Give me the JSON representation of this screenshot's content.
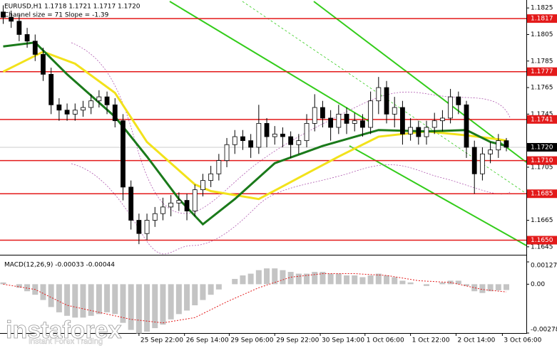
{
  "chart_data": [
    {
      "type": "candlestick",
      "title": "EURUSD,H1  1.1718 1.1721 1.1717 1.1720",
      "subtitle": "Channel size = 71 Slope = -1.39",
      "open": [
        1.1822,
        1.1818,
        1.1815,
        1.1805,
        1.18,
        1.179,
        1.1775,
        1.1752,
        1.1748,
        1.1745,
        1.1748,
        1.175,
        1.1755,
        1.1758,
        1.1752,
        1.174,
        1.169,
        1.1665,
        1.1655,
        1.1665,
        1.167,
        1.1675,
        1.1678,
        1.168,
        1.1672,
        1.1688,
        1.1695,
        1.17,
        1.171,
        1.1722,
        1.1728,
        1.1725,
        1.172,
        1.1738,
        1.1728,
        1.173,
        1.1728,
        1.1722,
        1.1725,
        1.1738,
        1.175,
        1.1742,
        1.1735,
        1.1745,
        1.1738,
        1.174,
        1.1735,
        1.1755,
        1.1765,
        1.1745,
        1.175,
        1.173,
        1.1735,
        1.1728,
        1.1735,
        1.174,
        1.1742,
        1.1758,
        1.1752,
        1.172,
        1.17,
        1.1715,
        1.1718,
        1.1725
      ],
      "high": [
        1.1827,
        1.1823,
        1.182,
        1.181,
        1.1805,
        1.1795,
        1.178,
        1.1757,
        1.1753,
        1.1753,
        1.1755,
        1.176,
        1.1763,
        1.1762,
        1.1757,
        1.1745,
        1.1695,
        1.167,
        1.167,
        1.1675,
        1.1682,
        1.1684,
        1.1686,
        1.1685,
        1.1692,
        1.17,
        1.1706,
        1.1715,
        1.1727,
        1.1733,
        1.1733,
        1.173,
        1.1752,
        1.1742,
        1.1736,
        1.1735,
        1.1732,
        1.173,
        1.1745,
        1.176,
        1.1755,
        1.1748,
        1.1752,
        1.175,
        1.1746,
        1.1745,
        1.1762,
        1.1773,
        1.177,
        1.1758,
        1.1755,
        1.1742,
        1.174,
        1.174,
        1.1746,
        1.1748,
        1.1764,
        1.1762,
        1.1755,
        1.1725,
        1.172,
        1.1724,
        1.173,
        1.1727
      ],
      "low": [
        1.1813,
        1.181,
        1.18,
        1.1795,
        1.1785,
        1.177,
        1.1745,
        1.174,
        1.174,
        1.174,
        1.1743,
        1.1745,
        1.175,
        1.1745,
        1.1735,
        1.168,
        1.1658,
        1.1647,
        1.165,
        1.166,
        1.1665,
        1.1668,
        1.1672,
        1.1665,
        1.1668,
        1.1683,
        1.169,
        1.1695,
        1.1705,
        1.1715,
        1.1718,
        1.1712,
        1.1715,
        1.172,
        1.1722,
        1.172,
        1.1712,
        1.1715,
        1.172,
        1.1732,
        1.1735,
        1.1725,
        1.173,
        1.173,
        1.1732,
        1.1728,
        1.173,
        1.1745,
        1.1738,
        1.1735,
        1.1722,
        1.1725,
        1.1722,
        1.1722,
        1.173,
        1.1732,
        1.1738,
        1.1745,
        1.1712,
        1.1685,
        1.1695,
        1.1708,
        1.1712,
        1.1717
      ],
      "close": [
        1.1818,
        1.1815,
        1.1805,
        1.18,
        1.179,
        1.1775,
        1.1752,
        1.1748,
        1.1745,
        1.1748,
        1.175,
        1.1755,
        1.1758,
        1.1752,
        1.174,
        1.169,
        1.1665,
        1.1655,
        1.1665,
        1.167,
        1.1675,
        1.1678,
        1.168,
        1.1672,
        1.1688,
        1.1695,
        1.17,
        1.171,
        1.1722,
        1.1728,
        1.1725,
        1.172,
        1.1738,
        1.1728,
        1.173,
        1.1728,
        1.1722,
        1.1725,
        1.1738,
        1.175,
        1.1742,
        1.1735,
        1.1745,
        1.1738,
        1.174,
        1.1735,
        1.1755,
        1.1765,
        1.1745,
        1.175,
        1.173,
        1.1735,
        1.1728,
        1.1735,
        1.174,
        1.1742,
        1.1758,
        1.1752,
        1.172,
        1.17,
        1.1715,
        1.1718,
        1.1725,
        1.172
      ],
      "ma_fast": {
        "color": "#1a7a1a",
        "x": [
          0,
          4,
          8,
          14,
          18,
          22,
          25,
          29,
          34,
          40,
          47,
          53,
          58,
          61,
          63
        ],
        "values": [
          1.1796,
          1.1799,
          1.1775,
          1.1743,
          1.1713,
          1.1681,
          1.1662,
          1.1681,
          1.1708,
          1.1721,
          1.1733,
          1.1732,
          1.1733,
          1.1724,
          1.1721
        ]
      },
      "ma_slow": {
        "color": "#f2e21b",
        "x": [
          0,
          5,
          9,
          14,
          18,
          24,
          26,
          32,
          37,
          42,
          47,
          53,
          58,
          62,
          63
        ],
        "values": [
          1.1777,
          1.1792,
          1.1783,
          1.1761,
          1.1724,
          1.1692,
          1.1687,
          1.1681,
          1.1697,
          1.1713,
          1.1728,
          1.1732,
          1.1729,
          1.1726,
          1.1725
        ]
      },
      "levels": [
        1.1817,
        1.1777,
        1.1741,
        {
          "value": 1.171,
          "label": "1.1710"
        },
        1.1685,
        {
          "value": 1.165,
          "label": "1.1650"
        }
      ],
      "level_color": "#e31a1a",
      "current_price": {
        "value": 1.172,
        "label": "1.1720"
      },
      "ylim": [
        1.1639,
        1.1831
      ],
      "yticks": [
        1.1825,
        1.1805,
        1.1785,
        1.1765,
        1.1745,
        1.1705,
        1.1665,
        1.1645
      ],
      "xlim": [
        -0.4,
        65.5
      ],
      "xticks": [
        {
          "value": 17,
          "label": "25 Sep 22:00"
        },
        {
          "value": 22.7,
          "label": "26 Sep 14:00"
        },
        {
          "value": 28.3,
          "label": "29 Sep 06:00"
        },
        {
          "value": 34,
          "label": "29 Sep 22:00"
        },
        {
          "value": 39.7,
          "label": "30 Sep 14:00"
        },
        {
          "value": 45.3,
          "label": "1 Oct 06:00"
        },
        {
          "value": 51,
          "label": "1 Oct 22:00"
        },
        {
          "value": 56.7,
          "label": "2 Oct 14:00"
        },
        {
          "value": 62.5,
          "label": "3 Oct 06:00"
        }
      ],
      "watermark": "instaforex",
      "watermark_tagline": "Instant Forex Trading"
    },
    {
      "type": "bar",
      "title": "MACD(12,26,9) -0.00033 -0.00044",
      "color": "#c4c4c4",
      "values": [
        0.0001,
        0,
        -0.0002,
        -0.0004,
        -0.0006,
        -0.0009,
        -0.0013,
        -0.0016,
        -0.0018,
        -0.0019,
        -0.0019,
        -0.0018,
        -0.0017,
        -0.0016,
        -0.0017,
        -0.0022,
        -0.0026,
        -0.0028,
        -0.0027,
        -0.0025,
        -0.0023,
        -0.002,
        -0.0017,
        -0.0015,
        -0.0012,
        -0.0009,
        -0.0006,
        -0.0003,
        0,
        0.0003,
        0.0005,
        0.0006,
        0.0008,
        0.0009,
        0.0009,
        0.0008,
        0.0007,
        0.0006,
        0.0006,
        0.0007,
        0.0007,
        0.0006,
        0.0006,
        0.0005,
        0.0005,
        0.0004,
        0.0005,
        0.0006,
        0.0005,
        0.0004,
        0.0002,
        0.0001,
        0,
        -0.0001,
        0,
        0.0001,
        0.0002,
        0.0002,
        -0.0001,
        -0.0004,
        -0.0005,
        -0.0004,
        -0.00035,
        -0.00033
      ],
      "signal": {
        "color": "#e31a1a",
        "x": [
          0,
          4,
          8,
          12,
          16,
          20,
          24,
          28,
          32,
          36,
          40,
          44,
          48,
          52,
          56,
          60,
          63
        ],
        "values": [
          0,
          -0.0003,
          -0.0012,
          -0.0016,
          -0.002,
          -0.0022,
          -0.0019,
          -0.001,
          -0.0002,
          0.0004,
          0.0006,
          0.0006,
          0.0005,
          0.0002,
          0.0001,
          -0.0003,
          -0.00044
        ]
      },
      "ylim": [
        -0.00278,
        0.00127
      ],
      "yticks": [
        0.00127,
        {
          "value": 0,
          "label": "0.00"
        },
        -0.00278
      ]
    }
  ]
}
